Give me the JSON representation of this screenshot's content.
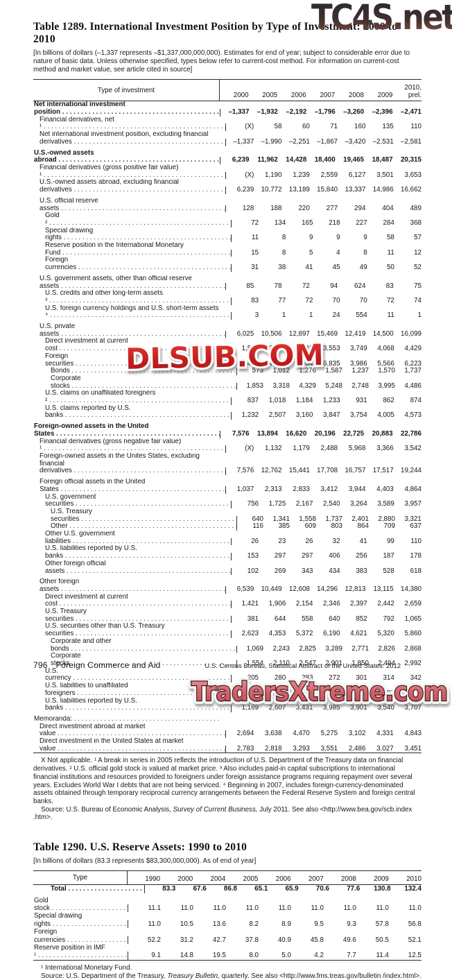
{
  "watermarks": {
    "top": "TC4S.net",
    "middle": "DLSUB.COM",
    "bottom": "TradersXtreme.com",
    "red": "#c41f1f",
    "salmon": "#d2636c"
  },
  "table1289": {
    "title": "Table 1289. International Investment Position by Type of Investment: 2000 to 2010",
    "headnote": "[In billions of dollars (–1,337 represents –$1,337,000,000,000). Estimates for end of year; subject to considerable error due to nature of basic data. Unless otherwise specified, types below refer to current-cost method. For information on current-cost method and market value, see article cited in source]",
    "col_header": "Type of investment",
    "years": [
      "2000",
      "2005",
      "2006",
      "2007",
      "2008",
      "2009",
      "2010,\nprel."
    ],
    "rows": [
      {
        "label": "Net international investment position",
        "bold": true,
        "indent": 0,
        "values": [
          "–1,337",
          "–1,932",
          "–2,192",
          "–1,796",
          "–3,260",
          "–2,396",
          "–2,471"
        ]
      },
      {
        "label": "Financial derivatives, net ¹",
        "indent": 1,
        "values": [
          "(X)",
          "58",
          "60",
          "71",
          "160",
          "135",
          "110"
        ]
      },
      {
        "label": "Net international investment position, excluding financial derivatives",
        "indent": 1,
        "values": [
          "–1,337",
          "–1,990",
          "–2,251",
          "–1,867",
          "–3,420",
          "–2,531",
          "–2,581"
        ]
      },
      {
        "spacer": true
      },
      {
        "label": "U.S.-owned assets abroad",
        "bold": true,
        "indent": 0,
        "values": [
          "6,239",
          "11,962",
          "14,428",
          "18,400",
          "19,465",
          "18,487",
          "20,315"
        ]
      },
      {
        "label": "Financial derivatives (gross positive fair value) ¹",
        "indent": 1,
        "values": [
          "(X)",
          "1,190",
          "1,239",
          "2,559",
          "6,127",
          "3,501",
          "3,653"
        ]
      },
      {
        "label": "U.S.-owned assets abroad, excluding financial derivatives",
        "indent": 1,
        "values": [
          "6,239",
          "10,772",
          "13,189",
          "15,840",
          "13,337",
          "14,986",
          "16,662"
        ]
      },
      {
        "spacer": true
      },
      {
        "label": "U.S. official reserve assets",
        "indent": 1,
        "values": [
          "128",
          "188",
          "220",
          "277",
          "294",
          "404",
          "489"
        ]
      },
      {
        "label": "Gold ²",
        "indent": 2,
        "values": [
          "72",
          "134",
          "165",
          "218",
          "227",
          "284",
          "368"
        ]
      },
      {
        "label": "Special drawing rights",
        "indent": 2,
        "values": [
          "11",
          "8",
          "9",
          "9",
          "9",
          "58",
          "57"
        ]
      },
      {
        "label": "Reserve position in the International Monetary Fund",
        "indent": 2,
        "values": [
          "15",
          "8",
          "5",
          "4",
          "8",
          "11",
          "12"
        ]
      },
      {
        "label": "Foreign currencies",
        "indent": 2,
        "values": [
          "31",
          "38",
          "41",
          "45",
          "49",
          "50",
          "52"
        ]
      },
      {
        "spacer": true
      },
      {
        "label": "U.S. government assets, other than official reserve assets",
        "indent": 1,
        "values": [
          "85",
          "78",
          "72",
          "94",
          "624",
          "83",
          "75"
        ]
      },
      {
        "label": "U.S. credits and other long-term assets ³",
        "indent": 2,
        "values": [
          "83",
          "77",
          "72",
          "70",
          "70",
          "72",
          "74"
        ]
      },
      {
        "label": "U.S. foreign currency holdings and U.S. short-term assets ⁴",
        "indent": 2,
        "values": [
          "3",
          "1",
          "1",
          "24",
          "554",
          "11",
          "1"
        ]
      },
      {
        "spacer": true
      },
      {
        "label": "U.S. private assets",
        "indent": 1,
        "values": [
          "6,025",
          "10,506",
          "12,897",
          "15,469",
          "12,419",
          "14,500",
          "16,099"
        ]
      },
      {
        "label": "Direct investment at current cost",
        "indent": 2,
        "values": [
          "1,532",
          "2,652",
          "2,948",
          "3,553",
          "3,749",
          "4,068",
          "4,429"
        ]
      },
      {
        "label": "Foreign securities",
        "indent": 2,
        "values": [
          "2,426",
          "4,329",
          "5,604",
          "6,835",
          "3,986",
          "5,566",
          "6,223"
        ]
      },
      {
        "label": "Bonds",
        "indent": 3,
        "values": [
          "573",
          "1,012",
          "1,276",
          "1,587",
          "1,237",
          "1,570",
          "1,737"
        ]
      },
      {
        "label": "Corporate stocks",
        "indent": 3,
        "values": [
          "1,853",
          "3,318",
          "4,329",
          "5,248",
          "2,748",
          "3,995",
          "4,486"
        ]
      },
      {
        "label": "U.S. claims on unaffiliated foreigners ²",
        "indent": 2,
        "values": [
          "837",
          "1,018",
          "1,184",
          "1,233",
          "931",
          "862",
          "874"
        ]
      },
      {
        "label": "U.S. claims reported by U.S. banks",
        "indent": 2,
        "values": [
          "1,232",
          "2,507",
          "3,160",
          "3,847",
          "3,754",
          "4,005",
          "4,573"
        ]
      },
      {
        "spacer": true
      },
      {
        "label": "Foreign-owned assets in the United States",
        "bold": true,
        "indent": 0,
        "values": [
          "7,576",
          "13,894",
          "16,620",
          "20,196",
          "22,725",
          "20,883",
          "22,786"
        ]
      },
      {
        "label": "Financial derivatives (gross negative fair value) ¹",
        "indent": 1,
        "values": [
          "(X)",
          "1,132",
          "1,179",
          "2,488",
          "5,968",
          "3,366",
          "3,542"
        ]
      },
      {
        "label": "Foreign-owned assets in the Unites States, excluding financial derivatives",
        "indent": 1,
        "values": [
          "7,576",
          "12,762",
          "15,441",
          "17,708",
          "16,757",
          "17,517",
          "19,244"
        ]
      },
      {
        "spacer": true
      },
      {
        "label": "Foreign official assets in the United States",
        "indent": 1,
        "values": [
          "1,037",
          "2,313",
          "2,833",
          "3,412",
          "3,944",
          "4,403",
          "4,864"
        ]
      },
      {
        "label": "U.S. government securities",
        "indent": 2,
        "values": [
          "756",
          "1,725",
          "2,167",
          "2,540",
          "3,264",
          "3,589",
          "3,957"
        ]
      },
      {
        "label": "U.S. Treasury securities",
        "indent": 3,
        "values": [
          "640",
          "1,341",
          "1,558",
          "1,737",
          "2,401",
          "2,880",
          "3,321"
        ]
      },
      {
        "label": "Other",
        "indent": 3,
        "values": [
          "116",
          "385",
          "609",
          "803",
          "864",
          "709",
          "637"
        ]
      },
      {
        "label": "Other U.S. government liabilities",
        "indent": 2,
        "values": [
          "26",
          "23",
          "26",
          "32",
          "41",
          "99",
          "110"
        ]
      },
      {
        "label": "U.S. liabilities reported by U.S. banks",
        "indent": 2,
        "values": [
          "153",
          "297",
          "297",
          "406",
          "256",
          "187",
          "178"
        ]
      },
      {
        "label": "Other foreign official assets",
        "indent": 2,
        "values": [
          "102",
          "269",
          "343",
          "434",
          "383",
          "528",
          "618"
        ]
      },
      {
        "spacer": true
      },
      {
        "label": "Other foreign assets",
        "indent": 1,
        "values": [
          "6,539",
          "10,449",
          "12,608",
          "14,296",
          "12,813",
          "13,115",
          "14,380"
        ]
      },
      {
        "label": "Direct investment at current cost",
        "indent": 2,
        "values": [
          "1,421",
          "1,906",
          "2,154",
          "2,346",
          "2,397",
          "2,442",
          "2,659"
        ]
      },
      {
        "label": "U.S. Treasury securities",
        "indent": 2,
        "values": [
          "381",
          "644",
          "558",
          "640",
          "852",
          "792",
          "1,065"
        ]
      },
      {
        "label": "U.S. securities other than U.S. Treasury securities",
        "indent": 2,
        "values": [
          "2,623",
          "4,353",
          "5,372",
          "6,190",
          "4,621",
          "5,320",
          "5,860"
        ]
      },
      {
        "label": "Corporate and other bonds",
        "indent": 3,
        "values": [
          "1,069",
          "2,243",
          "2,825",
          "3,289",
          "2,771",
          "2,826",
          "2,868"
        ]
      },
      {
        "label": "Corporate stocks",
        "indent": 3,
        "values": [
          "1,554",
          "2,110",
          "2,547",
          "2,901",
          "1,850",
          "2,494",
          "2,992"
        ]
      },
      {
        "label": "U.S. currency",
        "indent": 2,
        "values": [
          "205",
          "280",
          "283",
          "272",
          "301",
          "314",
          "342"
        ]
      },
      {
        "label": "U.S. liabilities to unaffiliated foreigners",
        "indent": 2,
        "values": [
          "739",
          "658",
          "799",
          "863",
          "741",
          "707",
          "748"
        ]
      },
      {
        "label": "U.S. liabilities reported by U.S. banks",
        "indent": 2,
        "values": [
          "1,169",
          "2,607",
          "3,431",
          "3,985",
          "3,901",
          "3,540",
          "3,707"
        ]
      },
      {
        "spacer": true
      },
      {
        "label": "Memoranda:",
        "indent": 0,
        "values": [
          "",
          "",
          "",
          "",
          "",
          "",
          ""
        ]
      },
      {
        "label": "Direct investment abroad at market value",
        "indent": 1,
        "values": [
          "2,694",
          "3,638",
          "4,470",
          "5,275",
          "3,102",
          "4,331",
          "4,843"
        ]
      },
      {
        "label": "Direct investment in the United States at market value",
        "indent": 1,
        "values": [
          "2,783",
          "2,818",
          "3,293",
          "3,551",
          "2,486",
          "3,027",
          "3,451"
        ]
      }
    ],
    "footnote": "X Not applicable. ¹ A break in series in 2005 reflects the introduction of U.S. Department of the Treasury data on financial derivatives. ² U.S. official gold stock is valued at market price. ³ Also includes paid-in capital subscriptions to international financial institutions and resources provided to foreigners under foreign assistance programs requiring repayment over several years. Excludes World War I debts that are not being serviced. ⁴ Beginning in 2007, includes foreign-currency-denominated assets obtained through temporary reciprocal currency arrangements between the Federal Reserve System and foreign central banks.",
    "source_pre": "Source: U.S. Bureau of Economic Analysis, ",
    "source_italic": "Survey of Current Business,",
    "source_post": " July 2011. See also <http://www.bea.gov/scb.index .htm>."
  },
  "table1290": {
    "title": "Table 1290. U.S. Reserve Assets: 1990 to 2010",
    "headnote": "[In billions of dollars (83.3 represents $83,300,000,000). As of end of year]",
    "col_header": "Type",
    "years": [
      "1990",
      "2000",
      "2004",
      "2005",
      "2006",
      "2007",
      "2008",
      "2009",
      "2010"
    ],
    "rows": [
      {
        "label": "Total",
        "bold": true,
        "indent": 3,
        "values": [
          "83.3",
          "67.6",
          "86.8",
          "65.1",
          "65.9",
          "70.6",
          "77.6",
          "130.8",
          "132.4"
        ]
      },
      {
        "spacer": true
      },
      {
        "label": "Gold stock",
        "indent": 0,
        "values": [
          "11.1",
          "11.0",
          "11.0",
          "11.0",
          "11.0",
          "11.0",
          "11.0",
          "11.0",
          "11.0"
        ]
      },
      {
        "label": "Special drawing rights",
        "indent": 0,
        "values": [
          "11.0",
          "10.5",
          "13.6",
          "8.2",
          "8.9",
          "9.5",
          "9.3",
          "57.8",
          "56.8"
        ]
      },
      {
        "label": "Foreign currencies",
        "indent": 0,
        "values": [
          "52.2",
          "31.2",
          "42.7",
          "37.8",
          "40.9",
          "45.8",
          "49.6",
          "50.5",
          "52.1"
        ]
      },
      {
        "label": "Reserve position in IMF ¹",
        "indent": 0,
        "values": [
          "9.1",
          "14.8",
          "19.5",
          "8.0",
          "5.0",
          "4.2",
          "7.7",
          "11.4",
          "12.5"
        ]
      }
    ],
    "footnote": "¹ International Monetary Fund.",
    "source_pre": "Source: U.S. Department of the Treasury, ",
    "source_italic": "Treasury Bulletin,",
    "source_post": " quarterly. See also <http://www.fms.treas.gov/bulletin /index.html>."
  },
  "footer": {
    "page_number": "796",
    "section": "Foreign Commerce and Aid",
    "credit": "U.S. Census Bureau, Statistical Abstract of the United States: 2012"
  }
}
